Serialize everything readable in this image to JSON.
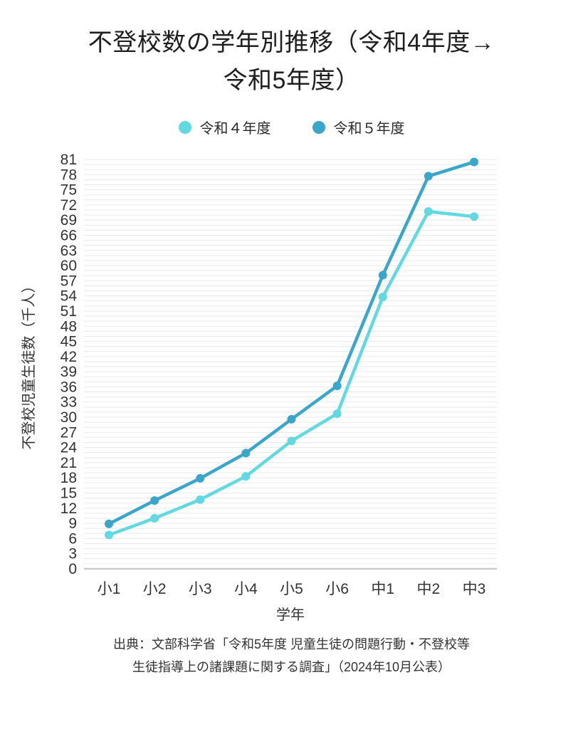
{
  "page": {
    "title_lines": [
      "不登校数の学年別推移（令和4年度→",
      "令和5年度）"
    ],
    "source_lines": [
      "出典：文部科学省「令和5年度 児童生徒の問題行動・不登校等",
      "生徒指導上の諸課題に関する調査」（2024年10月公表）"
    ]
  },
  "chart_data": {
    "type": "line",
    "title": "不登校数の学年別推移（令和4年度→令和5年度）",
    "categories": [
      "小1",
      "小2",
      "小3",
      "小4",
      "小5",
      "小6",
      "中1",
      "中2",
      "中3"
    ],
    "series": [
      {
        "name": "令和４年度",
        "color": "#62D9E0",
        "values": [
          6.7,
          10.0,
          13.7,
          18.3,
          25.3,
          30.7,
          53.8,
          70.7,
          69.7
        ]
      },
      {
        "name": "令和５年度",
        "color": "#3AA6C9",
        "values": [
          8.9,
          13.5,
          17.9,
          22.9,
          29.6,
          36.2,
          58.1,
          77.7,
          80.5
        ]
      }
    ],
    "xlabel": "学年",
    "ylabel": "不登校児童生徒数（千人）",
    "ylim": [
      0,
      81
    ],
    "yticks": [
      0,
      3,
      6,
      9,
      12,
      15,
      18,
      21,
      24,
      27,
      30,
      33,
      36,
      39,
      42,
      45,
      48,
      51,
      54,
      57,
      60,
      63,
      66,
      69,
      72,
      75,
      78,
      81
    ],
    "grid": true,
    "grid_step": 1,
    "legend_position": "top",
    "marker": "circle",
    "unit": "千人"
  },
  "colors": {
    "background": "#FFFFFF",
    "grid": "#E9E9E9",
    "zero_line": "#CBCBCB",
    "axis_text": "#333333",
    "title_text": "#1F1F1F"
  }
}
